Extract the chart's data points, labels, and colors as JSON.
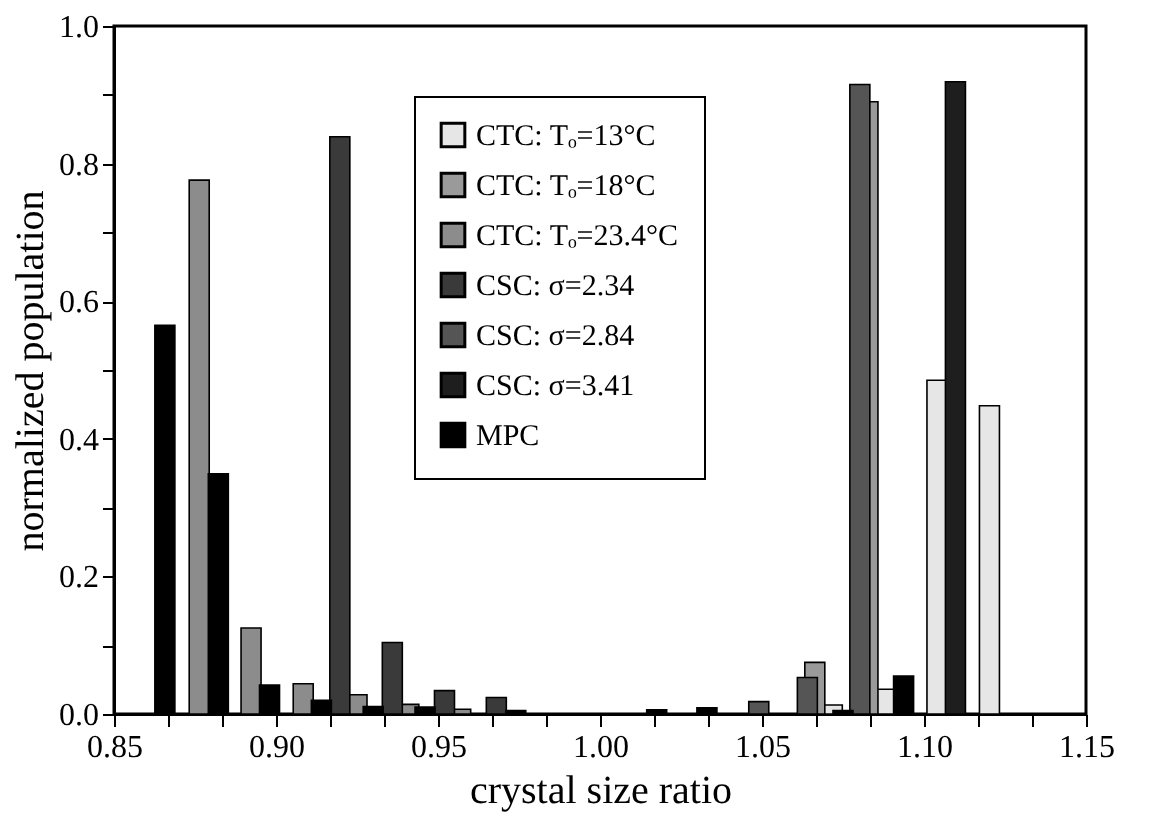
{
  "chart_data": {
    "type": "bar",
    "xlabel": "crystal size ratio",
    "ylabel": "normalized population",
    "xlim": [
      0.85,
      1.15
    ],
    "ylim": [
      0,
      1.0
    ],
    "xticks": [
      0.85,
      {
        "value": 0.8667,
        "label": null
      },
      {
        "value": 0.8833,
        "label": null
      },
      {
        "value": 0.9,
        "label": "0.90"
      },
      {
        "value": 0.9167,
        "label": null
      },
      {
        "value": 0.9333,
        "label": null
      },
      0.95,
      {
        "value": 0.9667,
        "label": null
      },
      {
        "value": 0.9833,
        "label": null
      },
      {
        "value": 1.0,
        "label": "1.00"
      },
      {
        "value": 1.0167,
        "label": null
      },
      {
        "value": 1.0333,
        "label": null
      },
      1.05,
      {
        "value": 1.0667,
        "label": null
      },
      {
        "value": 1.0833,
        "label": null
      },
      {
        "value": 1.1,
        "label": "1.10"
      },
      {
        "value": 1.1167,
        "label": null
      },
      {
        "value": 1.1333,
        "label": null
      },
      1.15
    ],
    "yticks": [
      {
        "value": 0,
        "label": "0.0"
      },
      {
        "value": 0.1,
        "label": null
      },
      0.2,
      {
        "value": 0.3,
        "label": null
      },
      0.4,
      {
        "value": 0.5,
        "label": null
      },
      0.6,
      {
        "value": 0.7,
        "label": null
      },
      0.8,
      {
        "value": 0.9,
        "label": null
      },
      {
        "value": 1.0,
        "label": "1.0"
      }
    ],
    "grid": false,
    "legend": "top",
    "series": [
      {
        "name": "CTC: Tₒ=13°C",
        "color": "#e6e6e6",
        "x": [
          1.0717,
          1.0876,
          1.104,
          1.1202
        ],
        "values": [
          0.013,
          0.036,
          0.485,
          0.448
        ]
      },
      {
        "name": "CTC: Tₒ=18°C",
        "color": "#9a9a9a",
        "x": [
          1.0663,
          1.0827
        ],
        "values": [
          0.075,
          0.89
        ]
      },
      {
        "name": "CTC: Tₒ=23.4°C",
        "color": "#8c8c8c",
        "x": [
          0.8763,
          0.8923,
          0.9084,
          0.925,
          0.941,
          0.957
        ],
        "values": [
          0.776,
          0.125,
          0.044,
          0.028,
          0.014,
          0.007
        ]
      },
      {
        "name": "CSC: σ=2.34",
        "color": "#3a3a3a",
        "x": [
          0.9197,
          0.9359,
          0.952,
          0.968
        ],
        "values": [
          0.839,
          0.104,
          0.034,
          0.024
        ]
      },
      {
        "name": "CSC: σ=2.84",
        "color": "#555555",
        "x": [
          1.049,
          1.064,
          1.0802
        ],
        "values": [
          0.018,
          0.053,
          0.915
        ]
      },
      {
        "name": "CSC: σ=3.41",
        "color": "#1e1e1e",
        "x": [
          1.1097
        ],
        "values": [
          0.919
        ]
      },
      {
        "name": "MPC",
        "color": "#000000",
        "x": [
          0.8657,
          0.8822,
          0.898,
          0.914,
          0.93,
          0.946,
          0.974,
          1.0175,
          1.033,
          1.075,
          1.0937
        ],
        "values": [
          0.565,
          0.349,
          0.042,
          0.02,
          0.011,
          0.01,
          0.005,
          0.006,
          0.009,
          0.005,
          0.055
        ]
      }
    ]
  }
}
